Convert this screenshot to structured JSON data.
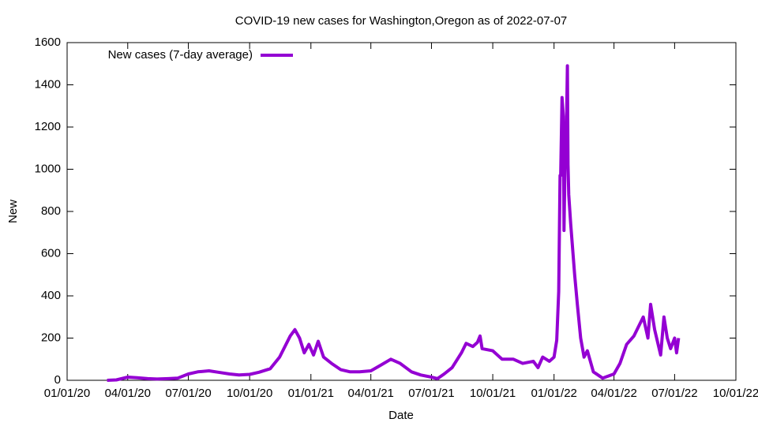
{
  "chart_data": {
    "type": "line",
    "title": "COVID-19 new cases for Washington,Oregon as of 2022-07-07",
    "x_label": "Date",
    "y_label": "New",
    "x": [
      "2020-03-01",
      "2020-03-15",
      "2020-04-01",
      "2020-04-15",
      "2020-05-01",
      "2020-05-15",
      "2020-06-01",
      "2020-06-15",
      "2020-07-01",
      "2020-07-15",
      "2020-08-01",
      "2020-08-15",
      "2020-09-01",
      "2020-09-15",
      "2020-10-01",
      "2020-10-15",
      "2020-11-01",
      "2020-11-15",
      "2020-12-01",
      "2020-12-08",
      "2020-12-15",
      "2020-12-22",
      "2020-12-29",
      "2021-01-05",
      "2021-01-12",
      "2021-01-20",
      "2021-02-01",
      "2021-02-15",
      "2021-03-01",
      "2021-03-15",
      "2021-04-01",
      "2021-04-15",
      "2021-05-01",
      "2021-05-15",
      "2021-06-01",
      "2021-06-15",
      "2021-07-01",
      "2021-07-10",
      "2021-07-20",
      "2021-08-01",
      "2021-08-15",
      "2021-08-22",
      "2021-09-01",
      "2021-09-08",
      "2021-09-12",
      "2021-09-15",
      "2021-10-01",
      "2021-10-15",
      "2021-11-01",
      "2021-11-15",
      "2021-12-01",
      "2021-12-08",
      "2021-12-15",
      "2021-12-25",
      "2022-01-01",
      "2022-01-05",
      "2022-01-08",
      "2022-01-10",
      "2022-01-11",
      "2022-01-13",
      "2022-01-15",
      "2022-01-16",
      "2022-01-18",
      "2022-01-19",
      "2022-01-21",
      "2022-01-22",
      "2022-01-23",
      "2022-01-26",
      "2022-02-01",
      "2022-02-05",
      "2022-02-10",
      "2022-02-15",
      "2022-02-20",
      "2022-03-01",
      "2022-03-15",
      "2022-04-01",
      "2022-04-10",
      "2022-04-20",
      "2022-05-01",
      "2022-05-15",
      "2022-05-22",
      "2022-05-26",
      "2022-06-01",
      "2022-06-10",
      "2022-06-15",
      "2022-06-20",
      "2022-06-25",
      "2022-07-01",
      "2022-07-04",
      "2022-07-07"
    ],
    "series": [
      {
        "name": "New cases (7-day average)",
        "color": "#9400d3",
        "values": [
          0,
          2,
          15,
          12,
          8,
          6,
          8,
          10,
          30,
          40,
          45,
          38,
          30,
          25,
          28,
          38,
          55,
          110,
          210,
          240,
          200,
          130,
          170,
          120,
          185,
          110,
          80,
          50,
          40,
          40,
          45,
          70,
          100,
          80,
          40,
          25,
          15,
          8,
          30,
          60,
          130,
          175,
          160,
          180,
          210,
          150,
          140,
          100,
          100,
          80,
          90,
          60,
          110,
          90,
          110,
          190,
          420,
          970,
          970,
          1340,
          1250,
          710,
          1130,
          1060,
          1490,
          1020,
          880,
          740,
          500,
          360,
          200,
          110,
          140,
          40,
          10,
          30,
          80,
          170,
          210,
          300,
          200,
          360,
          240,
          120,
          300,
          200,
          150,
          200,
          130,
          200
        ]
      }
    ],
    "xlim": [
      "2020-01-01",
      "2022-10-01"
    ],
    "xticks": [
      {
        "value": "2020-01-01",
        "label": "01/01/20"
      },
      {
        "value": "2020-04-01",
        "label": "04/01/20"
      },
      {
        "value": "2020-07-01",
        "label": "07/01/20"
      },
      {
        "value": "2020-10-01",
        "label": "10/01/20"
      },
      {
        "value": "2021-01-01",
        "label": "01/01/21"
      },
      {
        "value": "2021-04-01",
        "label": "04/01/21"
      },
      {
        "value": "2021-07-01",
        "label": "07/01/21"
      },
      {
        "value": "2021-10-01",
        "label": "10/01/21"
      },
      {
        "value": "2022-01-01",
        "label": "01/01/22"
      },
      {
        "value": "2022-04-01",
        "label": "04/01/22"
      },
      {
        "value": "2022-07-01",
        "label": "07/01/22"
      },
      {
        "value": "2022-10-01",
        "label": "10/01/22"
      }
    ],
    "ylim": [
      0,
      1600
    ],
    "yticks": [
      0,
      200,
      400,
      600,
      800,
      1000,
      1200,
      1400,
      1600
    ],
    "legend": "top-left"
  }
}
